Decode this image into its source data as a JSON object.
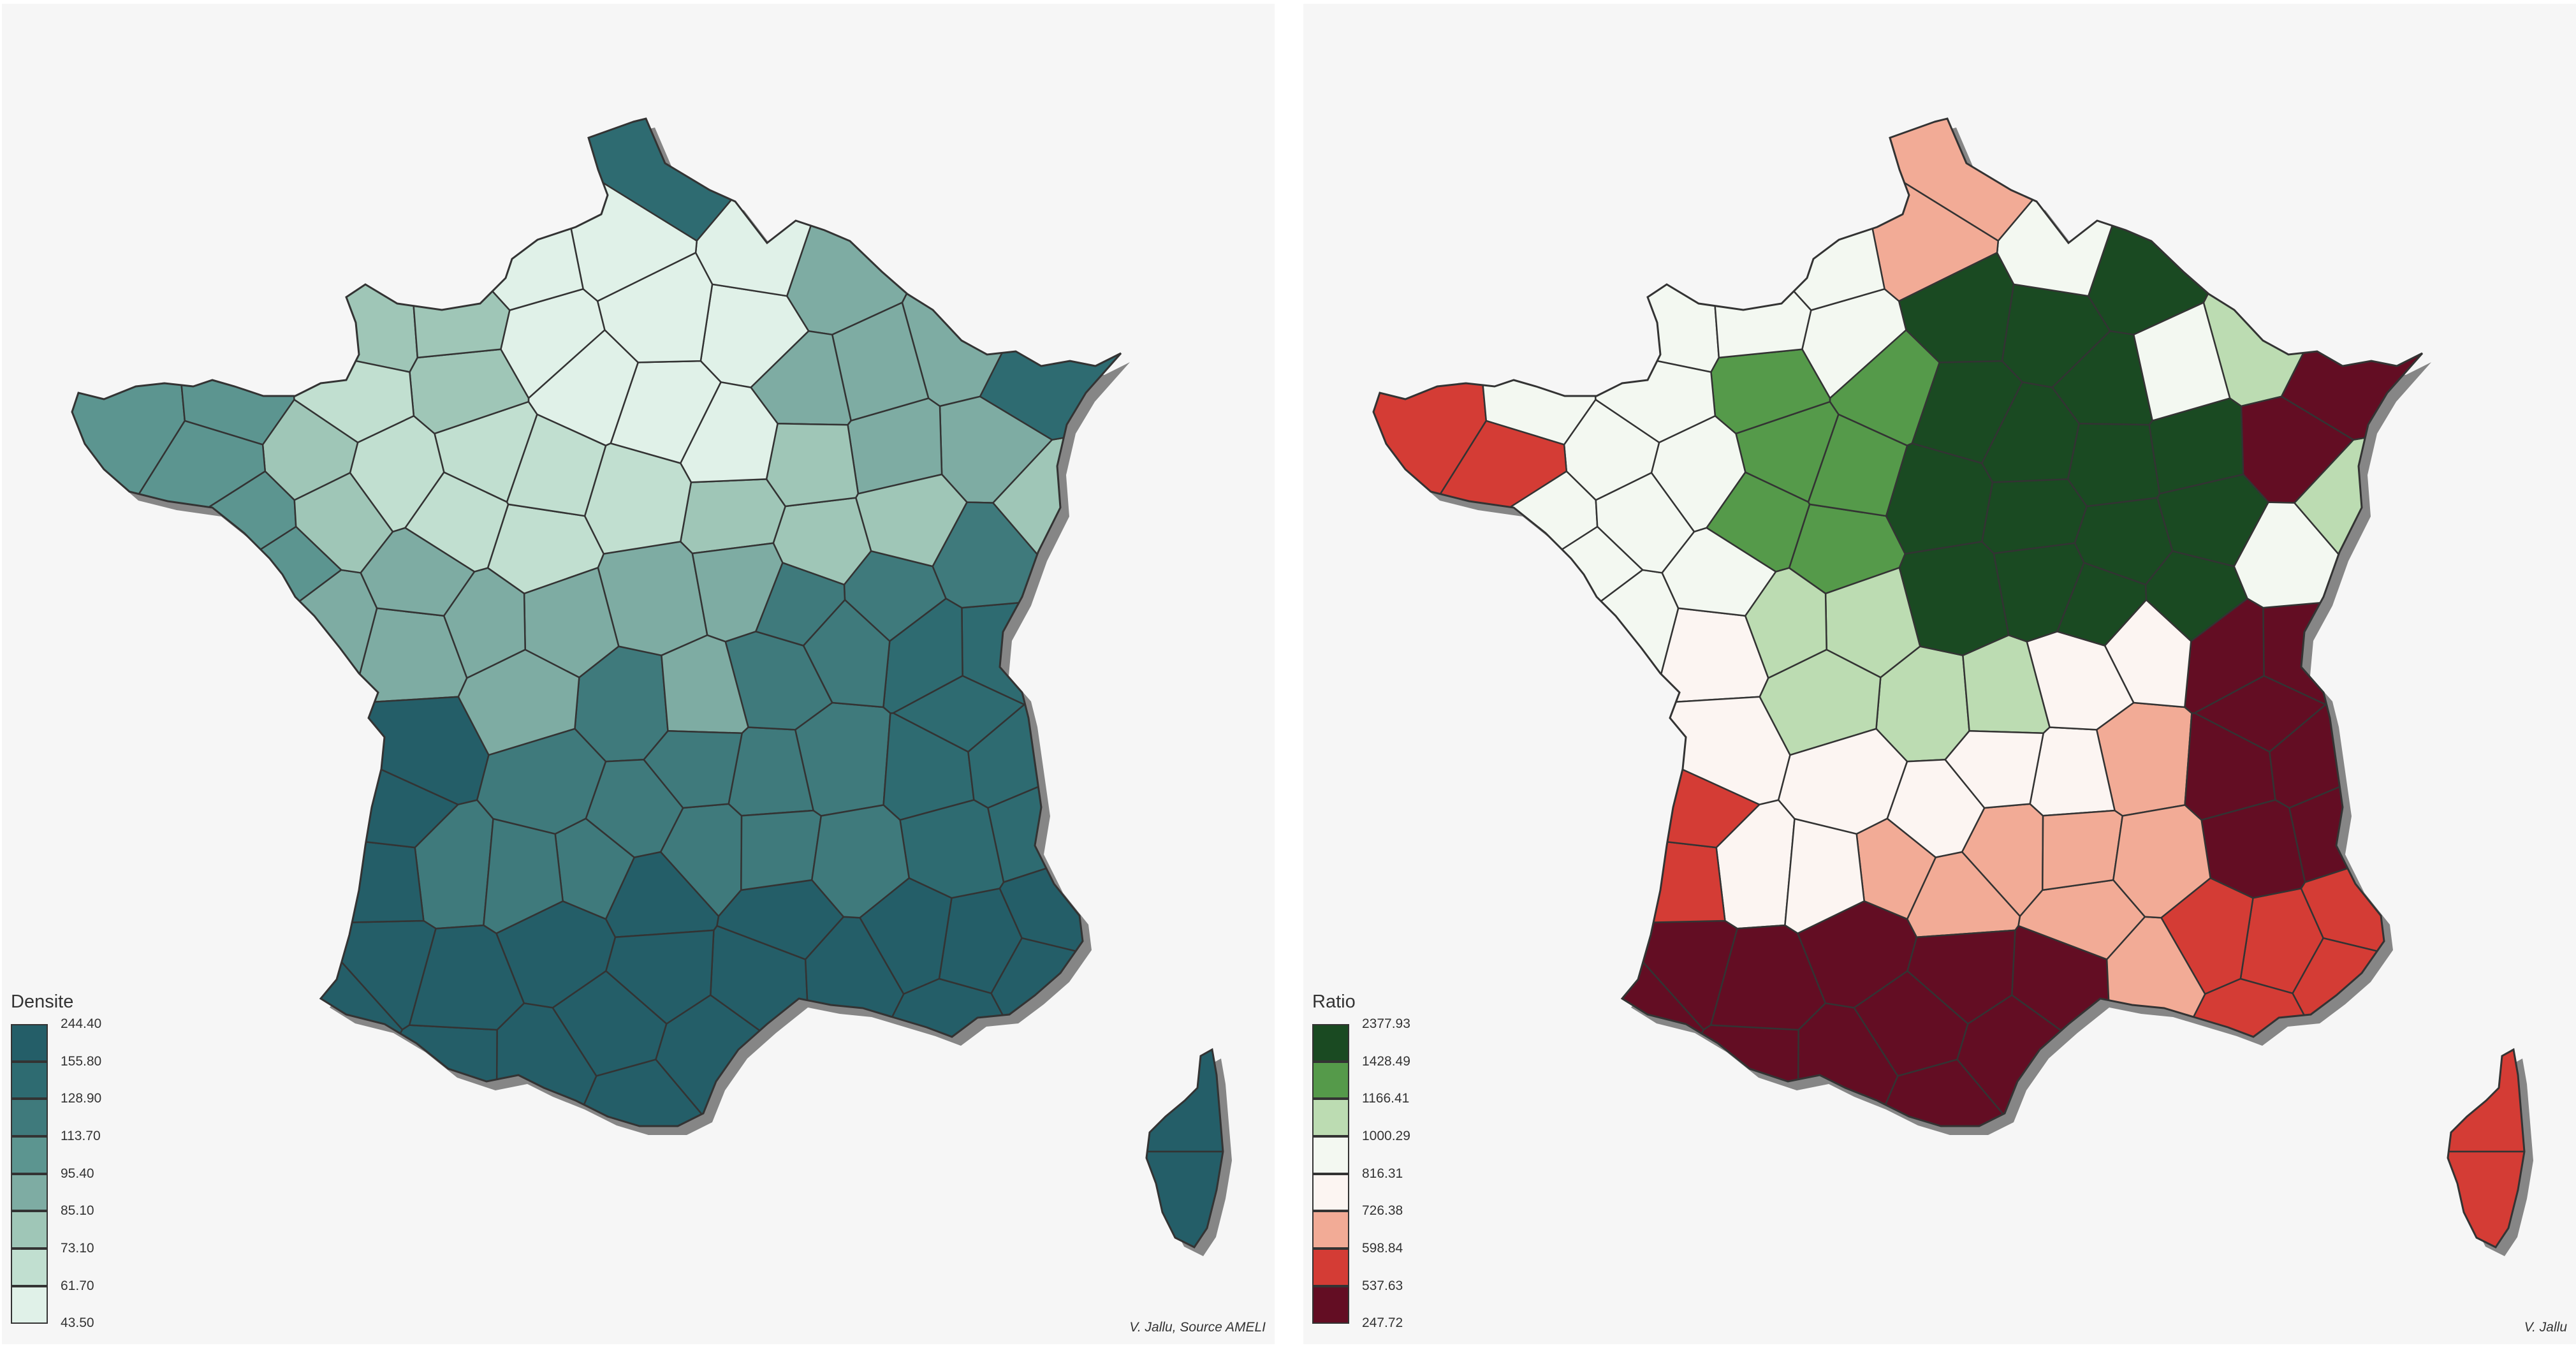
{
  "maps": [
    {
      "legend_title": "Densite",
      "breaks": [
        "244.40",
        "155.80",
        "128.90",
        "113.70",
        "95.40",
        "85.10",
        "73.10",
        "61.70",
        "43.50"
      ],
      "colors": [
        "#245e68",
        "#2e6b71",
        "#3f7a7c",
        "#5c9590",
        "#7eaca3",
        "#9fc6b7",
        "#c1dfd0",
        "#e0f1e8"
      ],
      "credit": "V. Jallu, Source AMELI"
    },
    {
      "legend_title": "Ratio",
      "breaks": [
        "2377.93",
        "1428.49",
        "1166.41",
        "1000.29",
        "816.31",
        "726.38",
        "598.84",
        "537.63",
        "247.72"
      ],
      "colors": [
        "#1a4a22",
        "#559a4a",
        "#bcdcb2",
        "#f3f8f1",
        "#fcf5f2",
        "#f2ab96",
        "#d43c35",
        "#630d23"
      ],
      "credit": "V. Jallu"
    }
  ]
}
